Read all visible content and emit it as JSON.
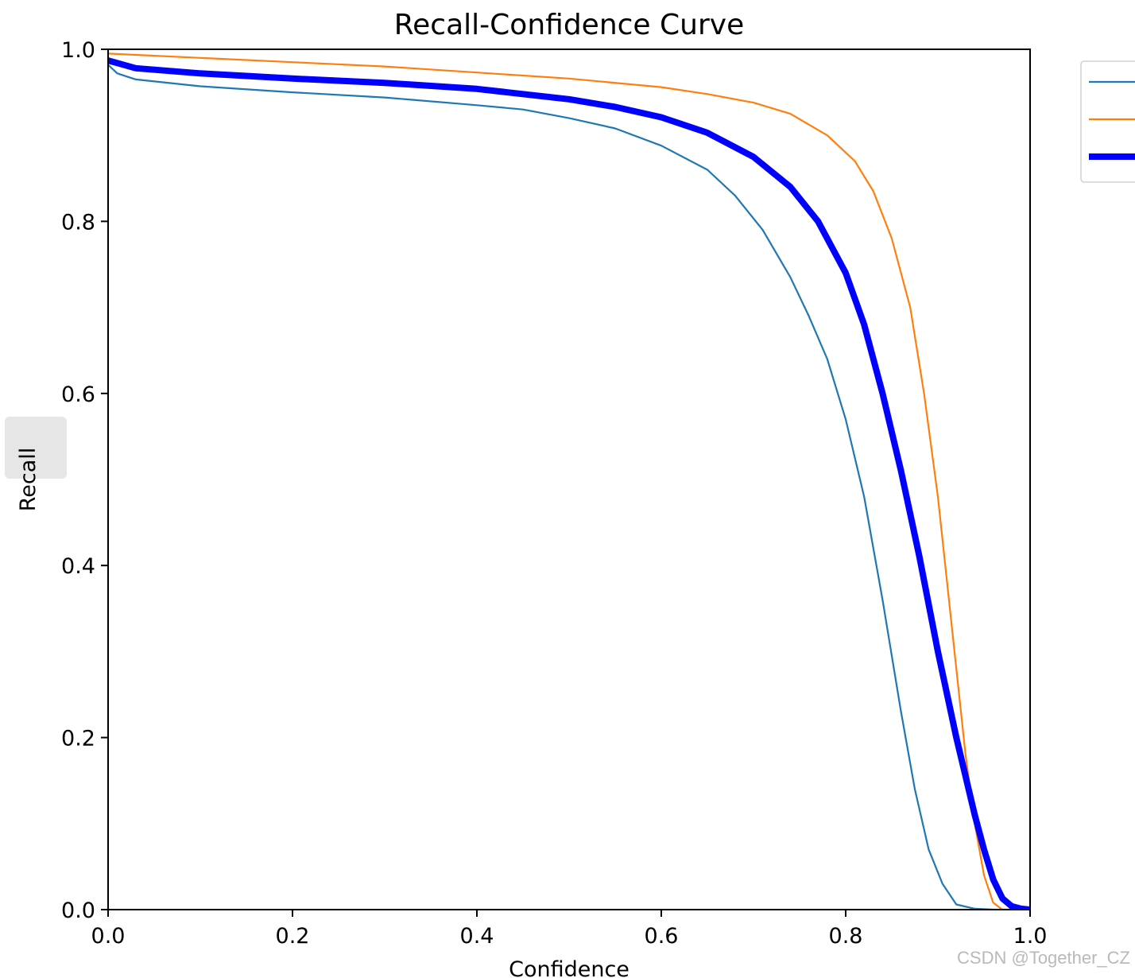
{
  "chart_data": {
    "type": "line",
    "title": "Recall-Confidence Curve",
    "xlabel": "Confidence",
    "ylabel": "Recall",
    "xlim": [
      0.0,
      1.0
    ],
    "ylim": [
      0.0,
      1.0
    ],
    "xticks": [
      "0.0",
      "0.2",
      "0.4",
      "0.6",
      "0.8",
      "1.0"
    ],
    "yticks": [
      "0.0",
      "0.2",
      "0.4",
      "0.6",
      "0.8",
      "1.0"
    ],
    "grid": false,
    "legend_position": "outside-top-right",
    "series": [
      {
        "color": "#1f77b4",
        "style": "thin",
        "points": [
          [
            0.0,
            0.982
          ],
          [
            0.01,
            0.972
          ],
          [
            0.03,
            0.965
          ],
          [
            0.1,
            0.957
          ],
          [
            0.2,
            0.95
          ],
          [
            0.3,
            0.944
          ],
          [
            0.4,
            0.935
          ],
          [
            0.45,
            0.93
          ],
          [
            0.5,
            0.92
          ],
          [
            0.55,
            0.908
          ],
          [
            0.6,
            0.888
          ],
          [
            0.65,
            0.86
          ],
          [
            0.68,
            0.83
          ],
          [
            0.71,
            0.79
          ],
          [
            0.74,
            0.735
          ],
          [
            0.76,
            0.69
          ],
          [
            0.78,
            0.64
          ],
          [
            0.8,
            0.57
          ],
          [
            0.82,
            0.48
          ],
          [
            0.84,
            0.36
          ],
          [
            0.86,
            0.23
          ],
          [
            0.875,
            0.14
          ],
          [
            0.89,
            0.07
          ],
          [
            0.905,
            0.03
          ],
          [
            0.92,
            0.006
          ],
          [
            0.94,
            0.001
          ],
          [
            0.96,
            0.0
          ],
          [
            1.0,
            0.0
          ]
        ]
      },
      {
        "color": "#ff7f0e",
        "style": "thin",
        "points": [
          [
            0.0,
            0.995
          ],
          [
            0.1,
            0.99
          ],
          [
            0.2,
            0.985
          ],
          [
            0.3,
            0.98
          ],
          [
            0.4,
            0.973
          ],
          [
            0.5,
            0.966
          ],
          [
            0.6,
            0.956
          ],
          [
            0.65,
            0.948
          ],
          [
            0.7,
            0.938
          ],
          [
            0.74,
            0.925
          ],
          [
            0.78,
            0.9
          ],
          [
            0.81,
            0.87
          ],
          [
            0.83,
            0.835
          ],
          [
            0.85,
            0.78
          ],
          [
            0.87,
            0.7
          ],
          [
            0.885,
            0.6
          ],
          [
            0.9,
            0.48
          ],
          [
            0.91,
            0.38
          ],
          [
            0.92,
            0.28
          ],
          [
            0.93,
            0.18
          ],
          [
            0.94,
            0.1
          ],
          [
            0.95,
            0.04
          ],
          [
            0.96,
            0.008
          ],
          [
            0.97,
            0.0
          ],
          [
            1.0,
            0.0
          ]
        ]
      },
      {
        "color": "#0000ff",
        "style": "thick",
        "points": [
          [
            0.0,
            0.987
          ],
          [
            0.01,
            0.984
          ],
          [
            0.03,
            0.978
          ],
          [
            0.1,
            0.972
          ],
          [
            0.2,
            0.966
          ],
          [
            0.3,
            0.961
          ],
          [
            0.4,
            0.954
          ],
          [
            0.5,
            0.942
          ],
          [
            0.55,
            0.933
          ],
          [
            0.6,
            0.921
          ],
          [
            0.65,
            0.903
          ],
          [
            0.7,
            0.875
          ],
          [
            0.74,
            0.84
          ],
          [
            0.77,
            0.8
          ],
          [
            0.8,
            0.74
          ],
          [
            0.82,
            0.68
          ],
          [
            0.84,
            0.6
          ],
          [
            0.86,
            0.51
          ],
          [
            0.88,
            0.41
          ],
          [
            0.9,
            0.3
          ],
          [
            0.92,
            0.2
          ],
          [
            0.94,
            0.11
          ],
          [
            0.95,
            0.07
          ],
          [
            0.96,
            0.035
          ],
          [
            0.97,
            0.013
          ],
          [
            0.98,
            0.004
          ],
          [
            0.99,
            0.001
          ],
          [
            1.0,
            0.0
          ]
        ]
      }
    ]
  },
  "watermark": "CSDN @Together_CZ"
}
